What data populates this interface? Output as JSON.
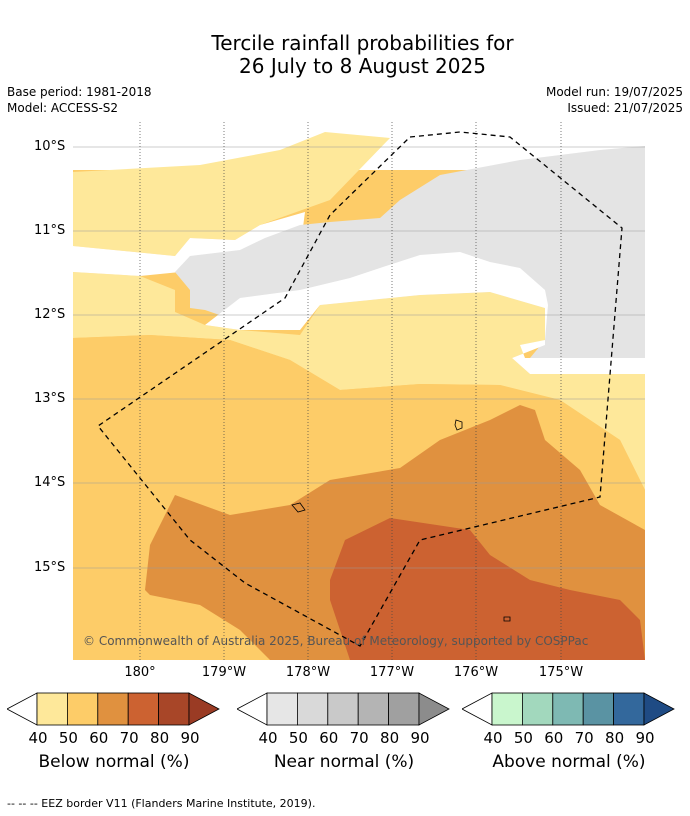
{
  "title": {
    "line1": "Tercile rainfall probabilities for",
    "line2": "26 July to 8 August 2025"
  },
  "meta": {
    "base_period": "Base period: 1981-2018",
    "model": "Model: ACCESS-S2",
    "model_run": "Model run: 19/07/2025",
    "issued": "Issued: 21/07/2025"
  },
  "map": {
    "lat_labels": [
      "10°S",
      "11°S",
      "12°S",
      "13°S",
      "14°S",
      "15°S"
    ],
    "lon_labels": [
      "180°",
      "179°W",
      "178°W",
      "177°W",
      "176°W",
      "175°W"
    ],
    "copyright": "© Commonwealth of Australia 2025, Bureau of Meteorology, supported by COSPPac"
  },
  "colorbars": [
    {
      "title": "Below normal (%)",
      "ticks": [
        "40",
        "50",
        "60",
        "70",
        "80",
        "90"
      ],
      "colors": [
        "#fee89a",
        "#fdcc68",
        "#e0913f",
        "#cc6231",
        "#a84628",
        "#9a3b24"
      ]
    },
    {
      "title": "Near normal (%)",
      "ticks": [
        "40",
        "50",
        "60",
        "70",
        "80",
        "90"
      ],
      "colors": [
        "#e6e6e6",
        "#d9d9d9",
        "#c9c9c9",
        "#b4b4b4",
        "#a0a0a0",
        "#8c8c8c"
      ]
    },
    {
      "title": "Above normal (%)",
      "ticks": [
        "40",
        "50",
        "60",
        "70",
        "80",
        "90"
      ],
      "colors": [
        "#c9f6cd",
        "#a2d8bd",
        "#7eb9b3",
        "#5a93a3",
        "#33689c",
        "#1f4b84"
      ]
    }
  ],
  "footer": "--  --  -- EEZ border V11 (Flanders Marine Institute, 2019)."
}
